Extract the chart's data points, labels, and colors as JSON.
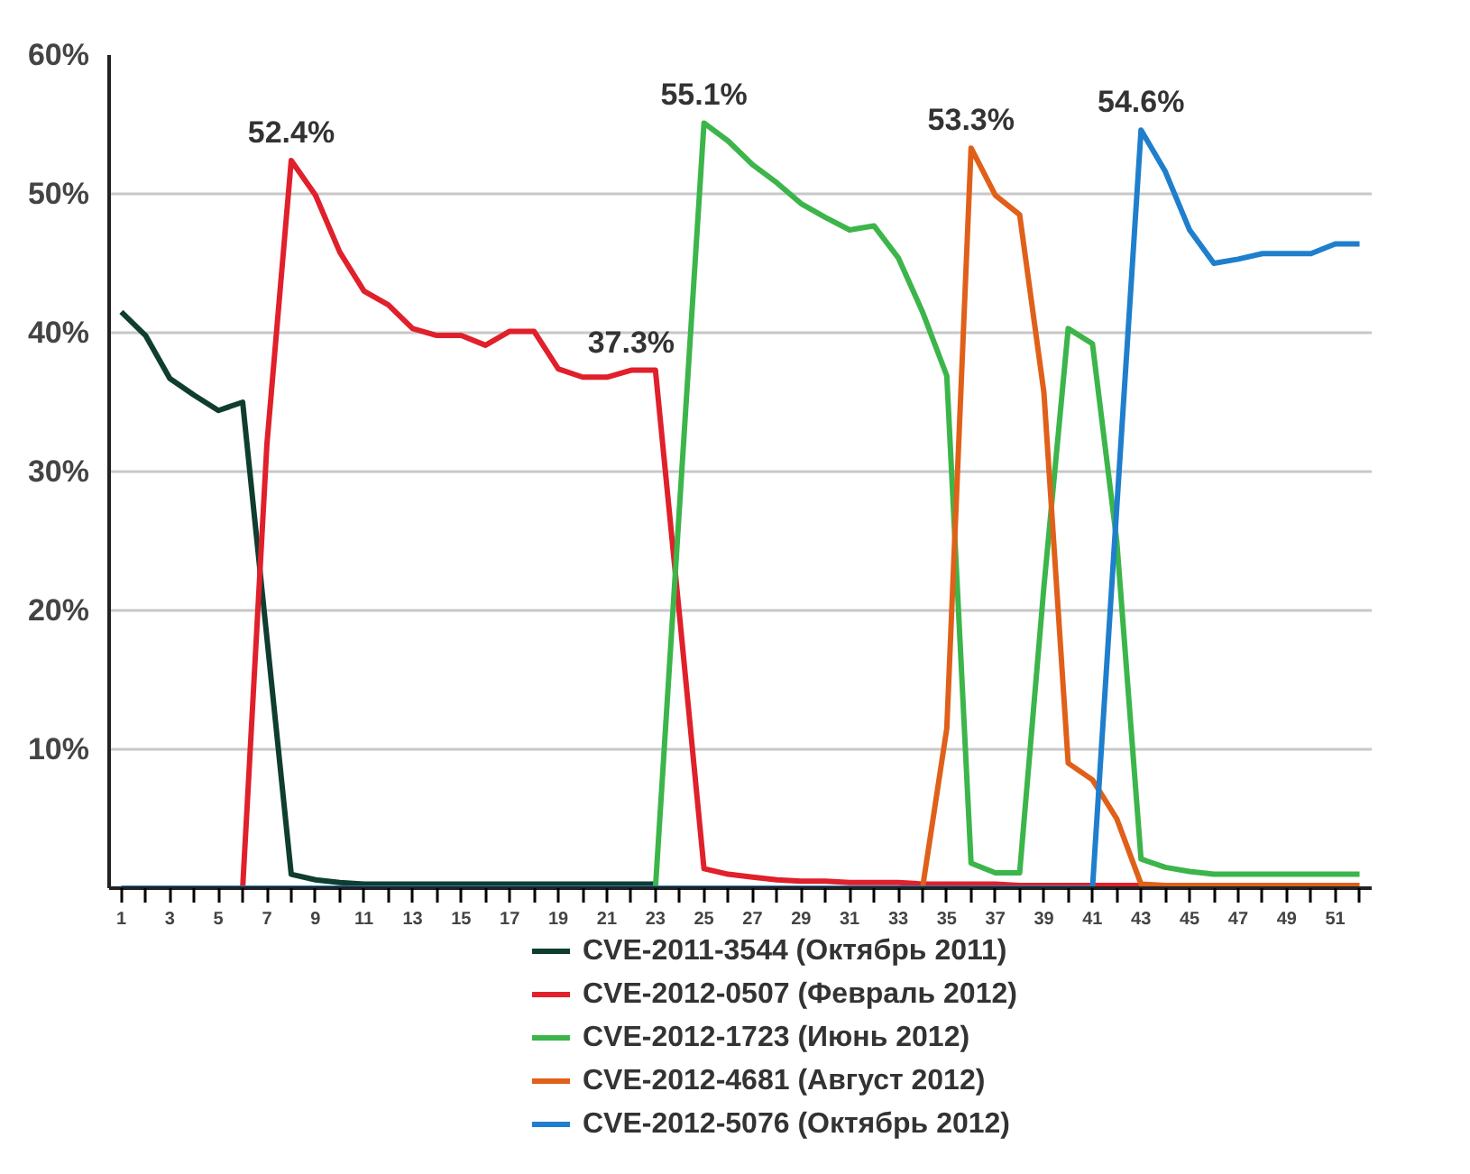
{
  "chart_data": {
    "type": "line",
    "x": [
      1,
      2,
      3,
      4,
      5,
      6,
      7,
      8,
      9,
      10,
      11,
      12,
      13,
      14,
      15,
      16,
      17,
      18,
      19,
      20,
      21,
      22,
      23,
      24,
      25,
      26,
      27,
      28,
      29,
      30,
      31,
      32,
      33,
      34,
      35,
      36,
      37,
      38,
      39,
      40,
      41,
      42,
      43,
      44,
      45,
      46,
      47,
      48,
      49,
      50,
      51,
      52
    ],
    "series": [
      {
        "name": "CVE-2011-3544 (Октябрь 2011)",
        "color": "#0f3d30",
        "values": [
          41.5,
          39.8,
          36.7,
          35.5,
          34.4,
          35.0,
          18,
          1.0,
          0.6,
          0.4,
          0.3,
          0.3,
          0.3,
          0.3,
          0.3,
          0.3,
          0.3,
          0.3,
          0.3,
          0.3,
          0.3,
          0.3,
          0.3,
          null,
          null,
          null,
          null,
          null,
          null,
          null,
          null,
          null,
          null,
          null,
          null,
          null,
          null,
          null,
          null,
          null,
          null,
          null,
          null,
          null,
          null,
          null,
          null,
          null,
          null,
          null,
          null,
          null
        ]
      },
      {
        "name": "CVE-2012-0507 (Февраль 2012)",
        "color": "#e0202a",
        "values": [
          null,
          null,
          null,
          null,
          null,
          0,
          32,
          52.4,
          49.9,
          45.8,
          43.0,
          42.0,
          40.3,
          39.8,
          39.8,
          39.1,
          40.1,
          40.1,
          37.4,
          36.8,
          36.8,
          37.3,
          37.3,
          19.5,
          1.4,
          1.0,
          0.8,
          0.6,
          0.5,
          0.5,
          0.4,
          0.4,
          0.4,
          0.3,
          0.3,
          0.3,
          0.3,
          0.2,
          0.2,
          0.2,
          0.2,
          0.2,
          0.2,
          0.2,
          null,
          null,
          null,
          null,
          null,
          null,
          null,
          null
        ]
      },
      {
        "name": "CVE-2012-1723 (Июнь 2012)",
        "color": "#3cb54a",
        "values": [
          null,
          null,
          null,
          null,
          null,
          null,
          null,
          null,
          null,
          null,
          null,
          null,
          null,
          null,
          null,
          null,
          null,
          null,
          null,
          null,
          null,
          null,
          0,
          27.7,
          55.1,
          53.8,
          52.1,
          50.8,
          49.3,
          48.3,
          47.4,
          47.7,
          45.4,
          41.5,
          36.9,
          1.8,
          1.1,
          1.1,
          21.7,
          40.3,
          39.2,
          25,
          2.1,
          1.5,
          1.2,
          1.0,
          1.0,
          1.0,
          1.0,
          1.0,
          1.0,
          1.0
        ]
      },
      {
        "name": "CVE-2012-4681 (Август 2012)",
        "color": "#e0601a",
        "values": [
          null,
          null,
          null,
          null,
          null,
          null,
          null,
          null,
          null,
          null,
          null,
          null,
          null,
          null,
          null,
          null,
          null,
          null,
          null,
          null,
          null,
          null,
          null,
          null,
          null,
          null,
          null,
          null,
          null,
          null,
          null,
          null,
          null,
          0,
          11.5,
          53.3,
          49.9,
          48.5,
          35.7,
          9.0,
          7.8,
          5.0,
          0.3,
          0.2,
          0.2,
          0.2,
          0.2,
          0.2,
          0.2,
          0.2,
          0.2,
          0.2
        ]
      },
      {
        "name": "CVE-2012-5076 (Октябрь 2012)",
        "color": "#1f7fcc",
        "values": [
          0,
          0,
          0,
          0,
          0,
          0,
          0,
          0,
          0,
          0,
          0,
          0,
          0,
          0,
          0,
          0,
          0,
          0,
          0,
          0,
          0,
          0,
          0,
          0,
          0,
          0,
          0,
          0,
          0,
          0,
          0,
          0,
          0,
          0,
          0,
          0,
          0,
          0,
          0,
          0,
          0,
          27.4,
          54.6,
          51.6,
          47.4,
          45.0,
          45.3,
          45.7,
          45.7,
          45.7,
          46.4,
          46.4
        ]
      }
    ],
    "annotations": [
      {
        "text": "52.4%",
        "x": 8,
        "y": 52.4
      },
      {
        "text": "55.1%",
        "x": 25,
        "y": 55.1
      },
      {
        "text": "37.3%",
        "x": 22,
        "y": 37.3
      },
      {
        "text": "53.3%",
        "x": 36,
        "y": 53.3
      },
      {
        "text": "54.6%",
        "x": 43,
        "y": 54.6
      }
    ],
    "xlim": [
      0.5,
      52.5
    ],
    "xticks": [
      1,
      {
        "value": 2,
        "label": null
      },
      3,
      {
        "value": 4,
        "label": null
      },
      5,
      {
        "value": 6,
        "label": null
      },
      7,
      {
        "value": 8,
        "label": null
      },
      9,
      {
        "value": 10,
        "label": null
      },
      11,
      {
        "value": 12,
        "label": null
      },
      13,
      {
        "value": 14,
        "label": null
      },
      15,
      {
        "value": 16,
        "label": null
      },
      17,
      {
        "value": 18,
        "label": null
      },
      19,
      {
        "value": 20,
        "label": null
      },
      21,
      {
        "value": 22,
        "label": null
      },
      23,
      {
        "value": 24,
        "label": null
      },
      25,
      {
        "value": 26,
        "label": null
      },
      27,
      {
        "value": 28,
        "label": null
      },
      29,
      {
        "value": 30,
        "label": null
      },
      31,
      {
        "value": 32,
        "label": null
      },
      33,
      {
        "value": 34,
        "label": null
      },
      35,
      {
        "value": 36,
        "label": null
      },
      37,
      {
        "value": 38,
        "label": null
      },
      39,
      {
        "value": 40,
        "label": null
      },
      41,
      {
        "value": 42,
        "label": null
      },
      43,
      {
        "value": 44,
        "label": null
      },
      45,
      {
        "value": 46,
        "label": null
      },
      47,
      {
        "value": 48,
        "label": null
      },
      49,
      {
        "value": 50,
        "label": null
      },
      51,
      {
        "value": 52,
        "label": null
      }
    ],
    "ylim": [
      0,
      60
    ],
    "yticks": [
      {
        "value": 0,
        "label": null
      },
      {
        "value": 10,
        "label": "10%"
      },
      {
        "value": 20,
        "label": "20%"
      },
      {
        "value": 30,
        "label": "30%"
      },
      {
        "value": 40,
        "label": "40%"
      },
      {
        "value": 50,
        "label": "50%"
      },
      {
        "value": 60,
        "label": "60%"
      }
    ],
    "grid": "y",
    "legend": "bottom",
    "marker": "none",
    "line_style": "solid"
  }
}
